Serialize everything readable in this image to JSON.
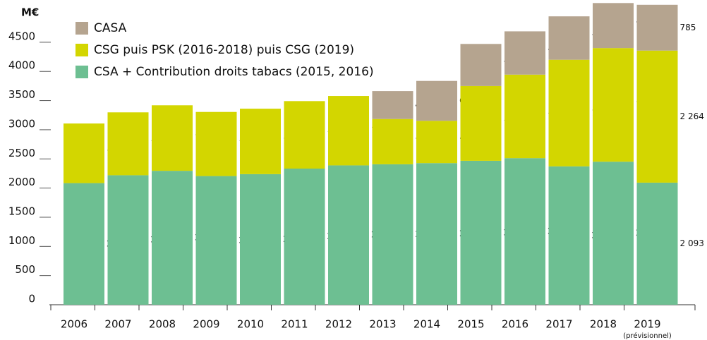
{
  "chart_data": {
    "type": "stacked_bar",
    "unit_label": "M€",
    "note": "(prévisionnel)",
    "categories": [
      "2006",
      "2007",
      "2008",
      "2009",
      "2010",
      "2011",
      "2012",
      "2013",
      "2014",
      "2015",
      "2016",
      "2017",
      "2018",
      "2019"
    ],
    "series": [
      {
        "name": "CSA + Contribution droits tabacs (2015, 2016)",
        "color": "#6dbf92",
        "values": [
          2085,
          2220,
          2296,
          2206,
          2239,
          2334,
          2389,
          2408,
          2428,
          2468,
          2513,
          2372,
          2452,
          2093
        ],
        "value_labels": [
          "2 085",
          "2 220",
          "2 296",
          "2 206",
          "2 239",
          "2 334",
          "2 389",
          "2 408",
          "2 428",
          "2 468",
          "2 513",
          "2 372",
          "2 452",
          "2 093"
        ]
      },
      {
        "name": "CSG puis PSK (2016-2018) puis CSG (2019)",
        "color": "#d3d600",
        "values": [
          1022,
          1078,
          1123,
          1099,
          1122,
          1157,
          1190,
          776,
          725,
          1282,
          1432,
          1828,
          1948,
          2264
        ],
        "value_labels": [
          "1 022",
          "1 078",
          "1 123",
          "1 099",
          "1 122",
          "1 157",
          "1 190",
          "776",
          "725",
          "1 282",
          "1 432",
          "1 828",
          "1 948",
          "2 264"
        ]
      },
      {
        "name": "CASA",
        "color": "#b5a48f",
        "values": [
          null,
          null,
          null,
          null,
          null,
          null,
          null,
          479,
          684,
          721,
          742,
          744,
          772,
          785
        ],
        "value_labels": [
          null,
          null,
          null,
          null,
          null,
          null,
          null,
          "479",
          "684",
          "721",
          "742",
          "744",
          "772",
          "785"
        ]
      }
    ],
    "ylim": [
      0,
      5200
    ],
    "yticks": [
      0,
      500,
      1000,
      1500,
      2000,
      2500,
      3000,
      3500,
      4000,
      4500
    ],
    "legend": "top-left"
  }
}
